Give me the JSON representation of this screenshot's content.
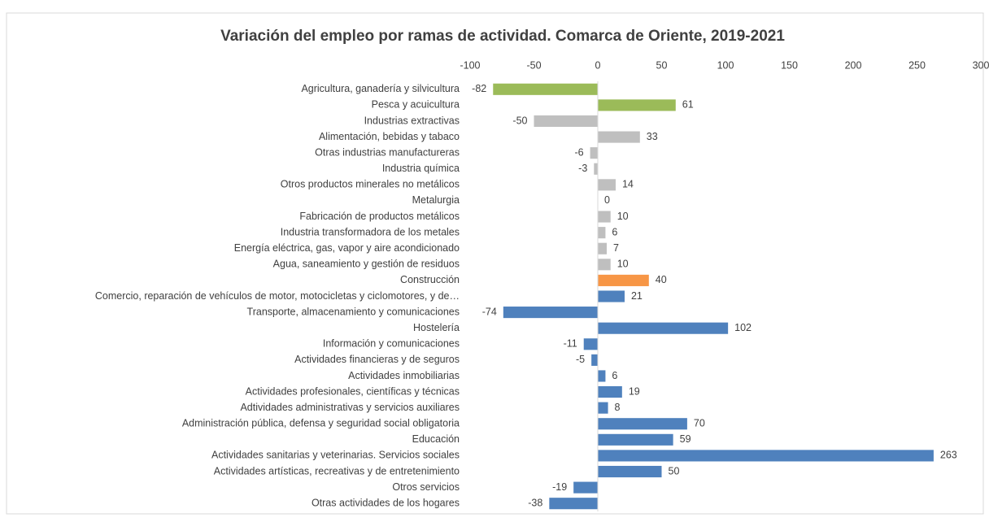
{
  "chart_data": {
    "type": "barh",
    "title": "Variación del empleo por ramas de actividad. Comarca de Oriente, 2019-2021",
    "categories": [
      "Agricultura, ganadería y silvicultura",
      "Pesca y acuicultura",
      "Industrias extractivas",
      "Alimentación, bebidas y tabaco",
      "Otras industrias manufactureras",
      "Industria química",
      "Otros productos minerales no metálicos",
      "Metalurgia",
      "Fabricación de productos metálicos",
      "Industria transformadora de los metales",
      "Energía eléctrica, gas, vapor y aire acondicionado",
      "Agua, saneamiento y gestión de residuos",
      "Construcción",
      "Comercio, reparación de vehículos de motor, motocicletas y ciclomotores, y de…",
      "Transporte, almacenamiento y comunicaciones",
      "Hostelería",
      "Información y comunicaciones",
      "Actividades financieras y de seguros",
      "Actividades inmobiliarias",
      "Actividades profesionales, científicas y técnicas",
      "Adtividades administrativas y servicios auxiliares",
      "Administración pública, defensa y seguridad social obligatoria",
      "Educación",
      "Actividades sanitarias y veterinarias. Servicios sociales",
      "Actividades artísticas, recreativas y de entretenimiento",
      "Otros servicios",
      "Otras actividades de los hogares"
    ],
    "values": [
      -82,
      61,
      -50,
      33,
      -6,
      -3,
      14,
      0,
      10,
      6,
      7,
      10,
      40,
      21,
      -74,
      102,
      -11,
      -5,
      6,
      19,
      8,
      70,
      59,
      263,
      50,
      -19,
      -38
    ],
    "colors": [
      "#9bbb59",
      "#9bbb59",
      "#bfbfbf",
      "#bfbfbf",
      "#bfbfbf",
      "#bfbfbf",
      "#bfbfbf",
      "#bfbfbf",
      "#bfbfbf",
      "#bfbfbf",
      "#bfbfbf",
      "#bfbfbf",
      "#f79646",
      "#4f81bd",
      "#4f81bd",
      "#4f81bd",
      "#4f81bd",
      "#4f81bd",
      "#4f81bd",
      "#4f81bd",
      "#4f81bd",
      "#4f81bd",
      "#4f81bd",
      "#4f81bd",
      "#4f81bd",
      "#4f81bd",
      "#4f81bd"
    ],
    "xlim": [
      -100,
      300
    ],
    "xticks": [
      -100,
      -50,
      0,
      50,
      100,
      150,
      200,
      250,
      300
    ],
    "grid": false
  }
}
